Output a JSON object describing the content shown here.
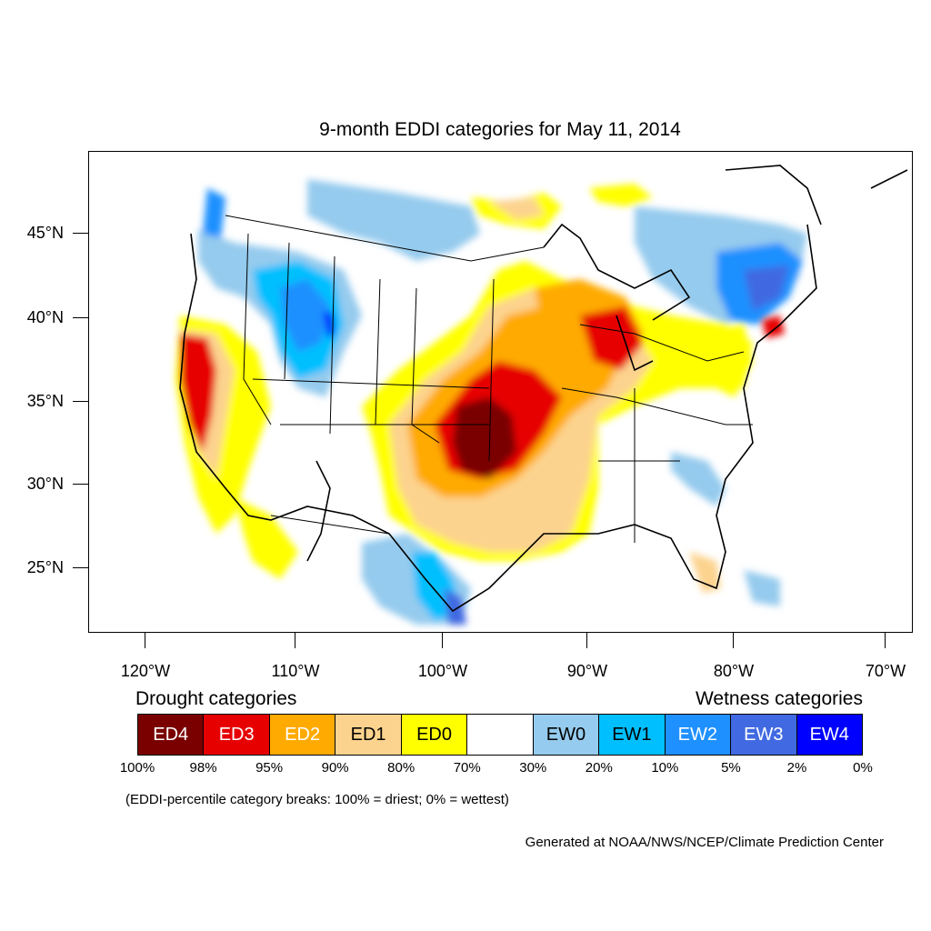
{
  "title": "9-month EDDI categories for May 11, 2014",
  "axes": {
    "lat_labels": [
      "45°N",
      "40°N",
      "35°N",
      "30°N",
      "25°N"
    ],
    "lon_labels": [
      "120°W",
      "110°W",
      "100°W",
      "90°W",
      "80°W",
      "70°W"
    ]
  },
  "legend": {
    "drought_title": "Drought categories",
    "wetness_title": "Wetness categories",
    "categories": [
      {
        "label": "ED4",
        "color": "#7a0000",
        "text_color": "#ffffff"
      },
      {
        "label": "ED3",
        "color": "#e60000",
        "text_color": "#ffffff"
      },
      {
        "label": "ED2",
        "color": "#ffaa00",
        "text_color": "#ffffff"
      },
      {
        "label": "ED1",
        "color": "#fcd38e",
        "text_color": "#000000"
      },
      {
        "label": "ED0",
        "color": "#ffff00",
        "text_color": "#000000"
      },
      {
        "label": "",
        "color": "#ffffff",
        "text_color": "#000000"
      },
      {
        "label": "EW0",
        "color": "#95cbee",
        "text_color": "#000000"
      },
      {
        "label": "EW1",
        "color": "#00bfff",
        "text_color": "#000000"
      },
      {
        "label": "EW2",
        "color": "#1e90ff",
        "text_color": "#ffffff"
      },
      {
        "label": "EW3",
        "color": "#4169e1",
        "text_color": "#ffffff"
      },
      {
        "label": "EW4",
        "color": "#0000ff",
        "text_color": "#ffffff"
      }
    ],
    "breaks": [
      "100%",
      "98%",
      "95%",
      "90%",
      "80%",
      "70%",
      "30%",
      "20%",
      "10%",
      "5%",
      "2%",
      "0%"
    ]
  },
  "note": "(EDDI-percentile category breaks: 100% = driest; 0% = wettest)",
  "credit": "Generated at NOAA/NWS/NCEP/Climate Prediction Center"
}
